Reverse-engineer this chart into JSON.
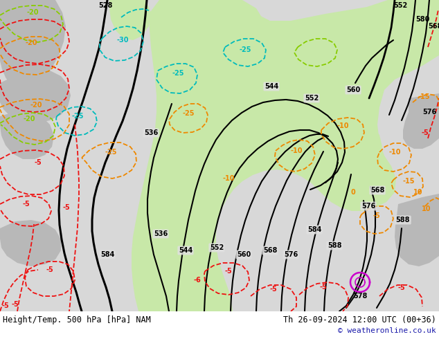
{
  "title_left": "Height/Temp. 500 hPa [hPa] NAM",
  "title_right": "Th 26-09-2024 12:00 UTC (00+36)",
  "copyright": "© weatheronline.co.uk",
  "bg_color": "#d8d8d8",
  "map_bg": "#e0e0e0",
  "green_fill": "#c8e8a8",
  "gray_land": "#b8b8b8",
  "figsize": [
    6.34,
    4.9
  ],
  "dpi": 100,
  "title_font_size": 8.5,
  "copyright_color": "#1a1aaa",
  "copyright_font_size": 8
}
